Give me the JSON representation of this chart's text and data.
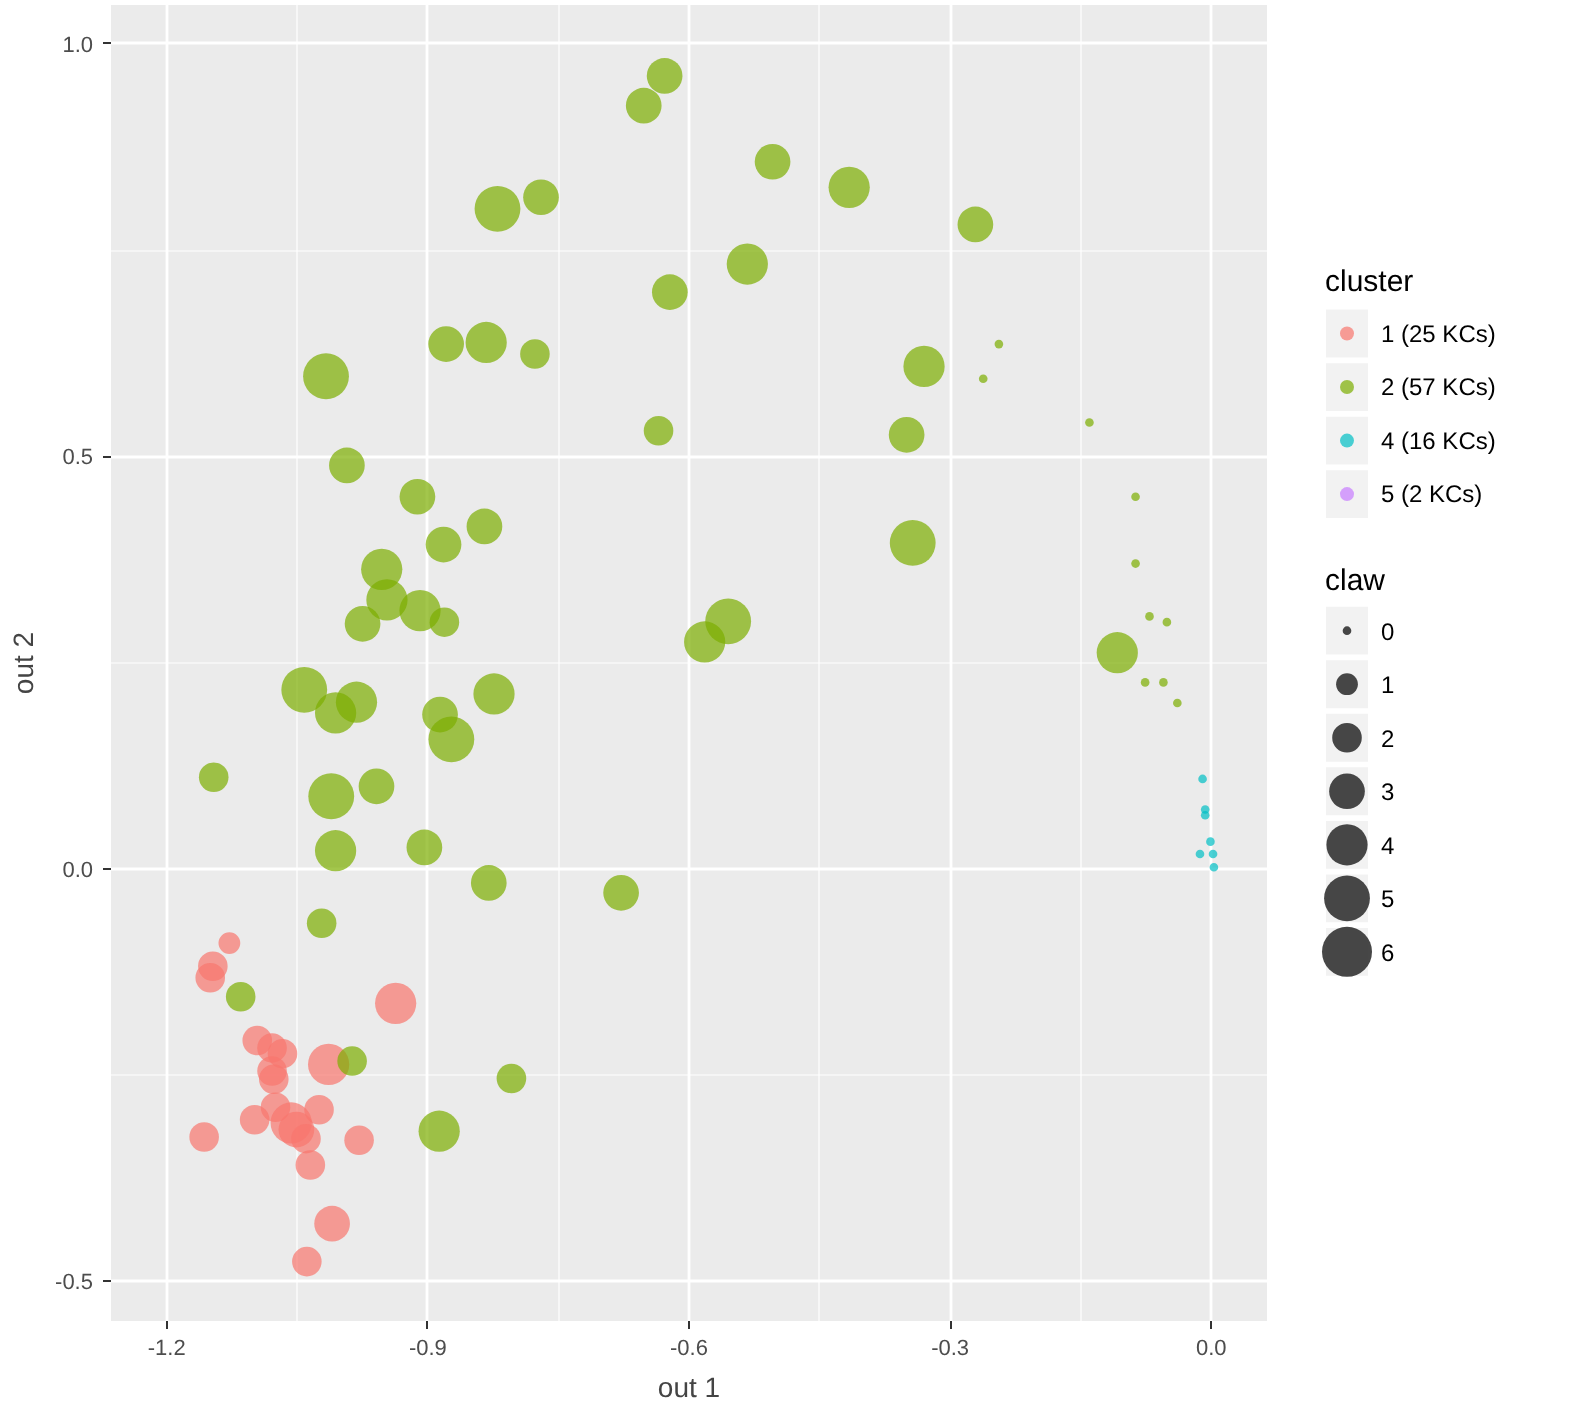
{
  "chart_data": {
    "type": "bubble",
    "xlabel": "out 1",
    "ylabel": "out 2",
    "legend_title": [
      "cluster",
      "claw"
    ],
    "legend": "right",
    "grid": true,
    "marker": "circle",
    "xlim": [
      -1.264,
      0.064
    ],
    "ylim": [
      -0.548,
      1.047
    ],
    "xticks": [
      {
        "value": -1.2,
        "label": "-1.2"
      },
      {
        "value": -0.9,
        "label": "-0.9"
      },
      {
        "value": -0.6,
        "label": "-0.6"
      },
      {
        "value": -0.3,
        "label": "-0.3"
      },
      {
        "value": 0,
        "label": "0.0"
      }
    ],
    "yticks": [
      {
        "value": -0.5,
        "label": "-0.5"
      },
      {
        "value": 0,
        "label": "0.0"
      },
      {
        "value": 0.5,
        "label": "0.5"
      },
      {
        "value": 1,
        "label": "1.0"
      }
    ],
    "size_legend": [
      {
        "value": 0.03,
        "label": "0"
      },
      {
        "value": 0.19,
        "label": "1"
      },
      {
        "value": 0.35,
        "label": "2"
      },
      {
        "value": 0.51,
        "label": "3"
      },
      {
        "value": 0.68,
        "label": "4"
      },
      {
        "value": 0.84,
        "label": "5"
      },
      {
        "value": 1,
        "label": "6"
      }
    ],
    "series": [
      {
        "name": "1 (25 KCs)",
        "color": "#f8766d",
        "x": [
          -1.128,
          -1.147,
          -1.15,
          -0.937,
          -1.096,
          -1.079,
          -1.067,
          -1.014,
          -1.079,
          -1.077,
          -1.075,
          -1.025,
          -1.099,
          -1.157,
          -1.057,
          -1.051,
          -1.04,
          -0.979,
          -1.035,
          -1.01,
          -1.039
        ],
        "values": [
          -0.09,
          -0.118,
          -0.132,
          -0.163,
          -0.208,
          -0.217,
          -0.224,
          -0.237,
          -0.245,
          -0.255,
          -0.289,
          -0.292,
          -0.304,
          -0.325,
          -0.308,
          -0.316,
          -0.327,
          -0.329,
          -0.359,
          -0.43,
          -0.476
        ],
        "sizes": [
          0.19,
          0.35,
          0.35,
          0.68,
          0.35,
          0.35,
          0.35,
          0.68,
          0.35,
          0.35,
          0.35,
          0.35,
          0.35,
          0.35,
          0.68,
          0.51,
          0.35,
          0.35,
          0.35,
          0.51,
          0.35
        ]
      },
      {
        "name": "2 (57 KCs)",
        "color": "#7cae00",
        "x": [
          -0.628,
          -0.652,
          -0.504,
          -0.416,
          -0.271,
          -0.82,
          -0.77,
          -0.533,
          -0.622,
          -0.879,
          -0.833,
          -0.777,
          -0.244,
          -0.262,
          -0.33,
          -0.35,
          -0.635,
          -0.343,
          -0.555,
          -0.582,
          -0.835,
          -0.882,
          -0.881,
          -0.912,
          -0.909,
          -0.824,
          -1.017,
          -0.993,
          -0.953,
          -0.947,
          -0.975,
          -1.042,
          -0.982,
          -1.006,
          -0.886,
          -0.873,
          -1.146,
          -1.011,
          -0.959,
          -1.006,
          -0.904,
          -0.83,
          -0.678,
          -1.022,
          -1.115,
          -0.987,
          -0.804,
          -0.887,
          -0.14,
          -0.087,
          -0.087,
          -0.071,
          -0.051,
          -0.108,
          -0.076,
          -0.055,
          -0.039
        ],
        "values": [
          0.961,
          0.925,
          0.857,
          0.826,
          0.781,
          0.8,
          0.814,
          0.733,
          0.699,
          0.636,
          0.638,
          0.624,
          0.636,
          0.594,
          0.609,
          0.526,
          0.531,
          0.395,
          0.3,
          0.275,
          0.415,
          0.393,
          0.299,
          0.451,
          0.313,
          0.212,
          0.597,
          0.489,
          0.363,
          0.326,
          0.297,
          0.217,
          0.202,
          0.189,
          0.187,
          0.157,
          0.111,
          0.088,
          0.1,
          0.022,
          0.026,
          -0.017,
          -0.029,
          -0.066,
          -0.155,
          -0.233,
          -0.254,
          -0.318,
          0.541,
          0.451,
          0.37,
          0.306,
          0.299,
          0.262,
          0.226,
          0.226,
          0.201
        ],
        "sizes": [
          0.51,
          0.51,
          0.51,
          0.68,
          0.51,
          0.84,
          0.51,
          0.68,
          0.51,
          0.51,
          0.68,
          0.35,
          0.03,
          0.03,
          0.68,
          0.51,
          0.35,
          0.84,
          0.84,
          0.68,
          0.51,
          0.51,
          0.35,
          0.51,
          0.68,
          0.68,
          0.84,
          0.51,
          0.68,
          0.68,
          0.51,
          0.84,
          0.68,
          0.68,
          0.51,
          0.84,
          0.35,
          0.84,
          0.51,
          0.68,
          0.51,
          0.51,
          0.51,
          0.35,
          0.35,
          0.35,
          0.35,
          0.68,
          0.03,
          0.03,
          0.03,
          0.03,
          0.03,
          0.68,
          0.03,
          0.03,
          0.03
        ]
      },
      {
        "name": "4 (16 KCs)",
        "color": "#00bfc4",
        "x": [
          -0.01,
          -0.007,
          -0.007,
          -0.001,
          -0.013,
          0.002,
          0.003
        ],
        "values": [
          0.109,
          0.072,
          0.065,
          0.033,
          0.018,
          0.018,
          0.002
        ],
        "sizes": [
          0.03,
          0.03,
          0.03,
          0.03,
          0.03,
          0.03,
          0.03
        ]
      },
      {
        "name": "5 (2 KCs)",
        "color": "#c77cff"
      }
    ]
  }
}
